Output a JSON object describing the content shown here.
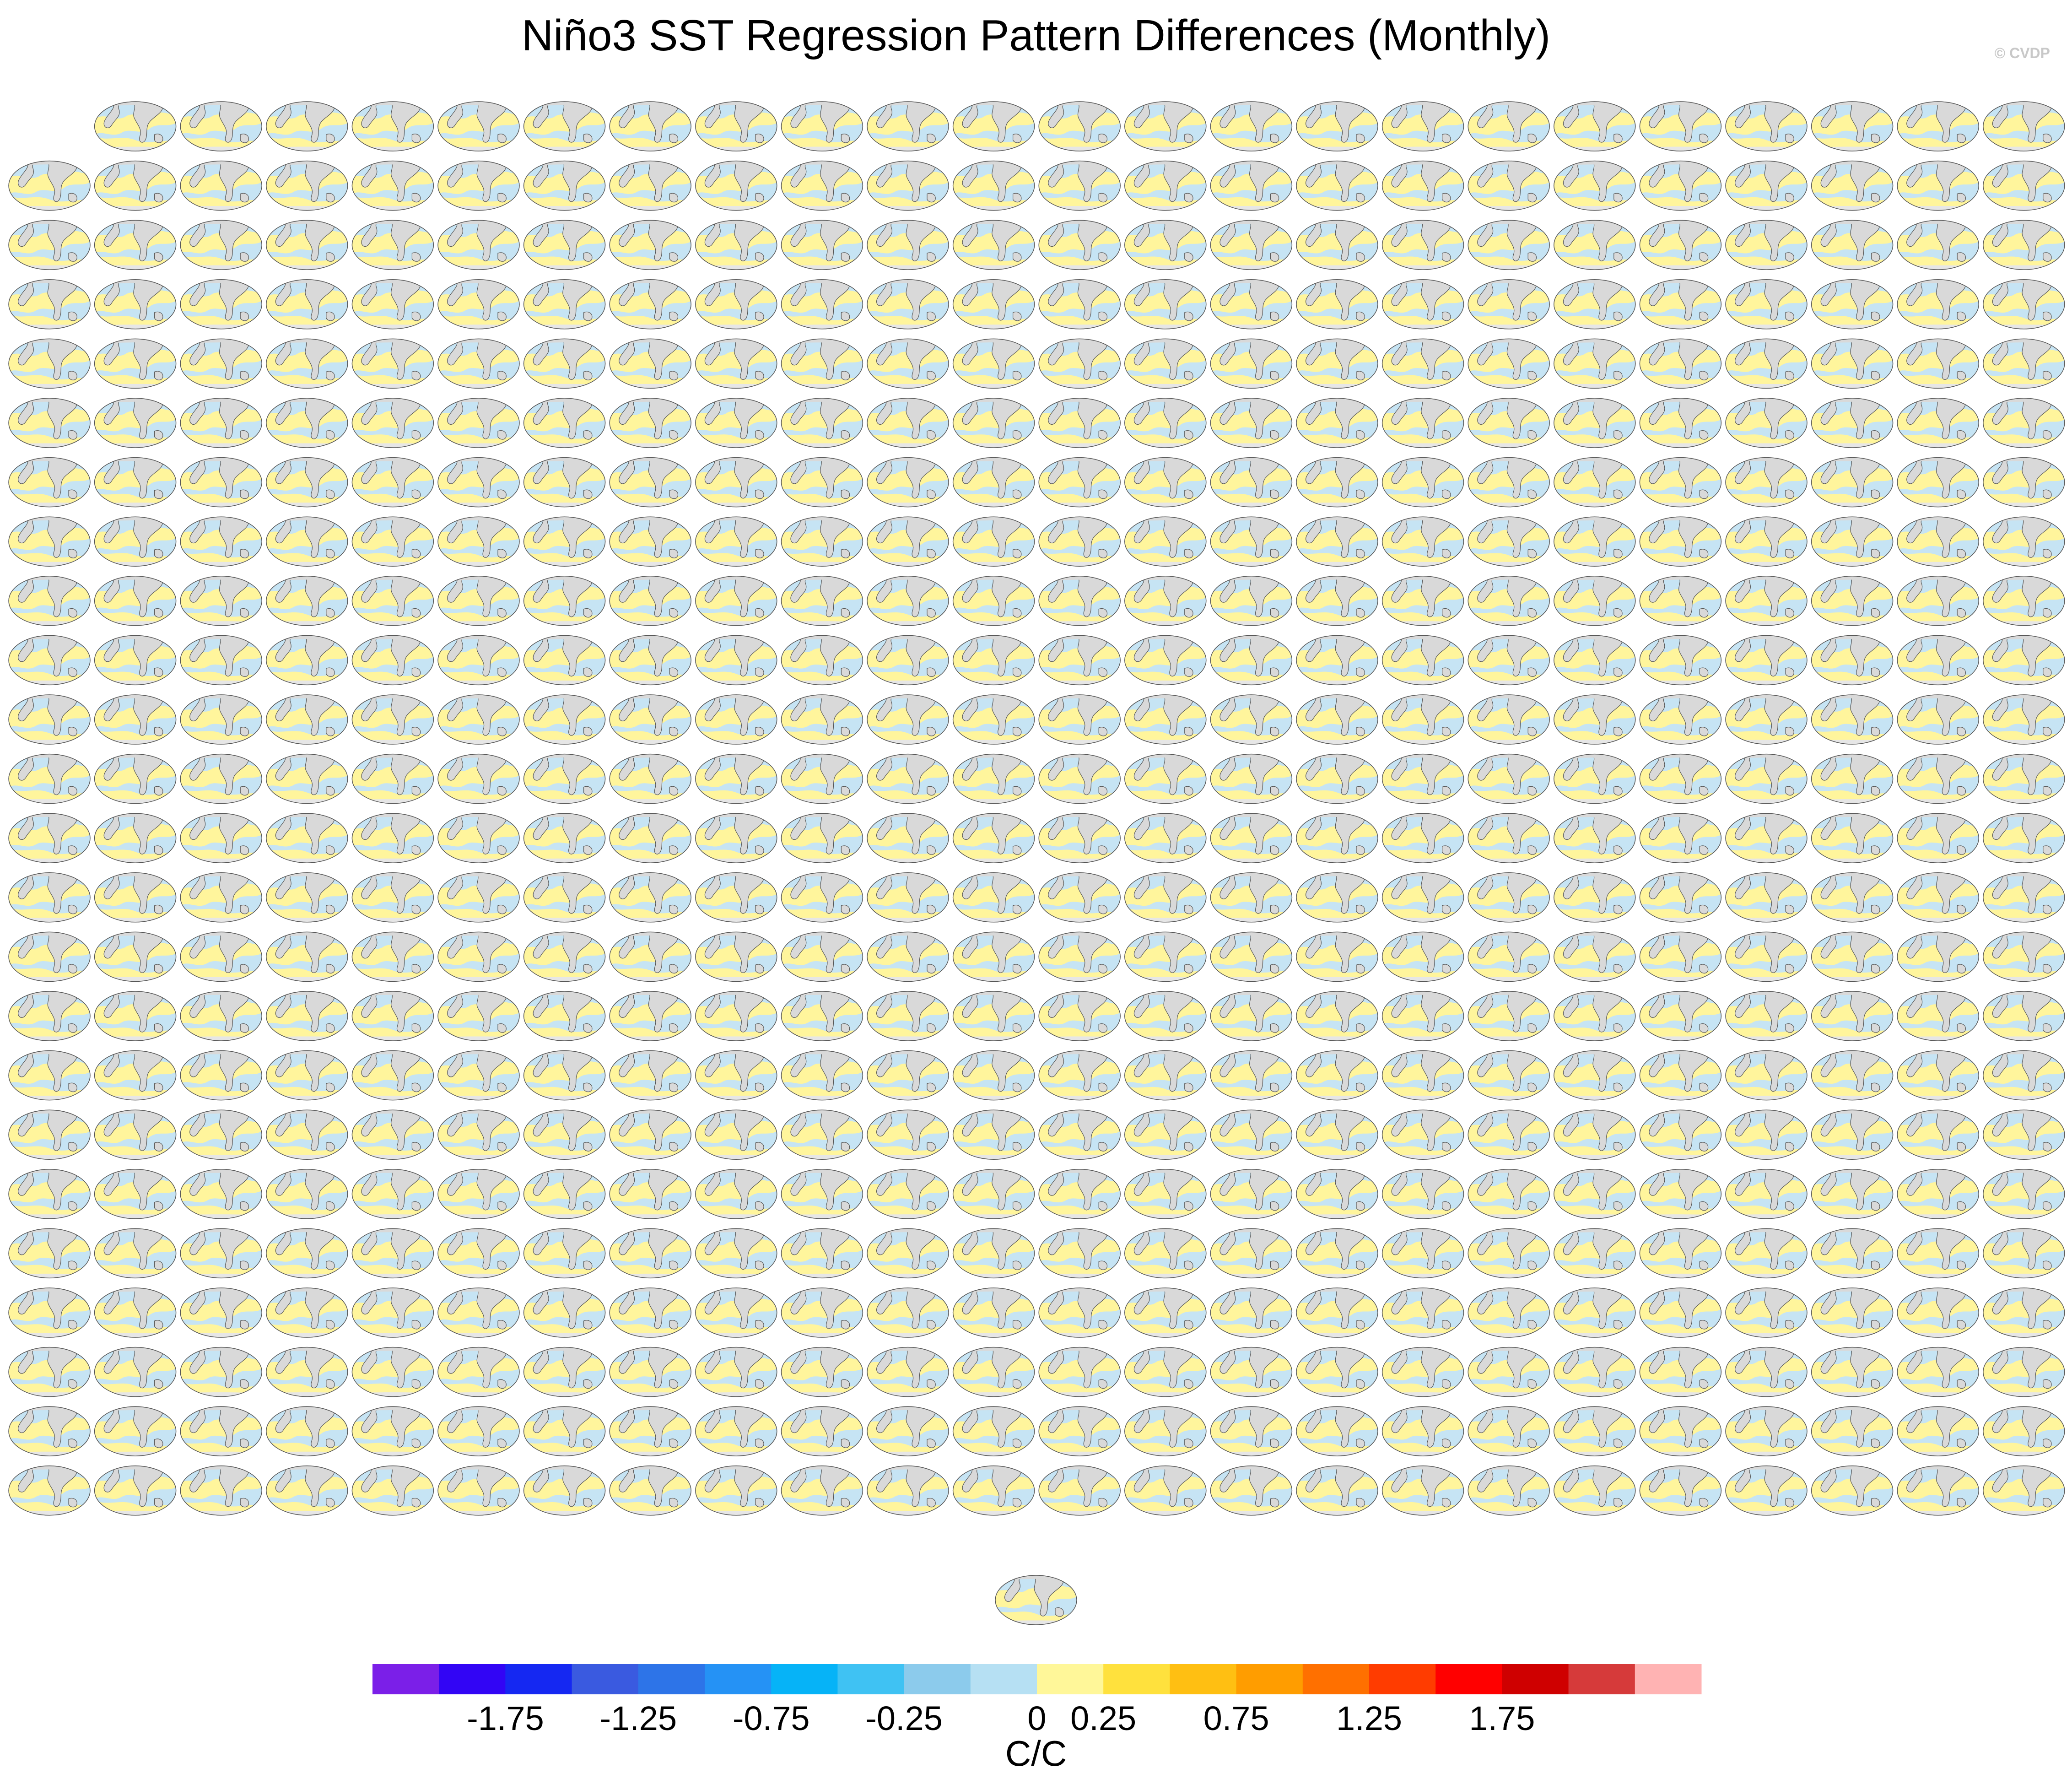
{
  "title": "Niño3 SST Regression Pattern Differences (Monthly)",
  "credit": "© CVDP",
  "chart_data": {
    "type": "heatmap",
    "title": "Niño3 SST Regression Pattern Differences (Monthly)",
    "description_panels": "small-multiple global map panels arranged in a grid",
    "panel_grid": {
      "rows": 24,
      "columns": 24,
      "first_row_columns": 23,
      "extra_bottom_panels": 1,
      "total_panels": 576
    },
    "colorbar": {
      "unit": "C/C",
      "colors": [
        "#7b1fe8",
        "#3205f5",
        "#1528f2",
        "#3a5ae0",
        "#2d74e8",
        "#2592f5",
        "#06b3f7",
        "#3fc2f3",
        "#8ccbec",
        "#b6e0f3",
        "#fff799",
        "#ffe13d",
        "#ffbf12",
        "#ff9d00",
        "#ff7000",
        "#ff3c00",
        "#ff0000",
        "#cf0000",
        "#d63a3a",
        "#ffb3b3"
      ],
      "tick_labels": [
        "-1.75",
        "-1.25",
        "-0.75",
        "-0.25",
        "0",
        "0.25",
        "0.75",
        "1.25",
        "1.75"
      ]
    },
    "land_color": "#d9d9d9",
    "dominant_colors": [
      "#b6e0f3",
      "#fff799",
      "#ffe13d"
    ]
  }
}
